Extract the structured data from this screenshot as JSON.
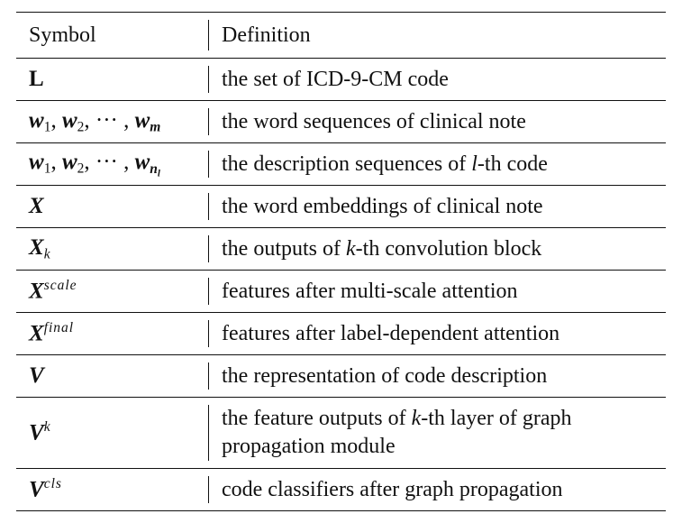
{
  "header": {
    "symbol_label": "Symbol",
    "definition_label": "Definition"
  },
  "rows": [
    {
      "symbol_main": "L",
      "definition": "the set of ICD-9-CM code"
    },
    {
      "symbol_main": "w",
      "w1_sub": "1",
      "sep1": ", ",
      "w2_main": "w",
      "w2_sub": "2",
      "dots": ", ··· , ",
      "wm_main": "w",
      "wm_sub": "m",
      "definition": "the word sequences of clinical note"
    },
    {
      "symbol_main": "w",
      "w1_sub": "1",
      "sep1": ", ",
      "w2_main": "w",
      "w2_sub": "2",
      "dots": ", ··· , ",
      "wn_main": "w",
      "wn_sub": "n",
      "wn_subsub": "l",
      "definition_pre": "the description sequences of ",
      "definition_it": "l",
      "definition_post": "-th code"
    },
    {
      "symbol_main": "X",
      "definition": "the word embeddings of clinical note"
    },
    {
      "symbol_main": "X",
      "symbol_sub": "k",
      "definition_pre": "the outputs of ",
      "definition_it": "k",
      "definition_post": "-th convolution block"
    },
    {
      "symbol_main": "X",
      "symbol_sup": "scale",
      "definition": "features after multi-scale attention"
    },
    {
      "symbol_main": "X",
      "symbol_sup": "final",
      "definition": "features after label-dependent attention"
    },
    {
      "symbol_main": "V",
      "definition": "the representation of code description"
    },
    {
      "symbol_main": "V",
      "symbol_sup": "k",
      "definition_pre": "the feature outputs of ",
      "definition_it": "k",
      "definition_post": "-th layer of graph",
      "definition_line2": "propagation module"
    },
    {
      "symbol_main": "V",
      "symbol_sup": "cls",
      "definition": "code classifiers after graph propagation"
    }
  ]
}
